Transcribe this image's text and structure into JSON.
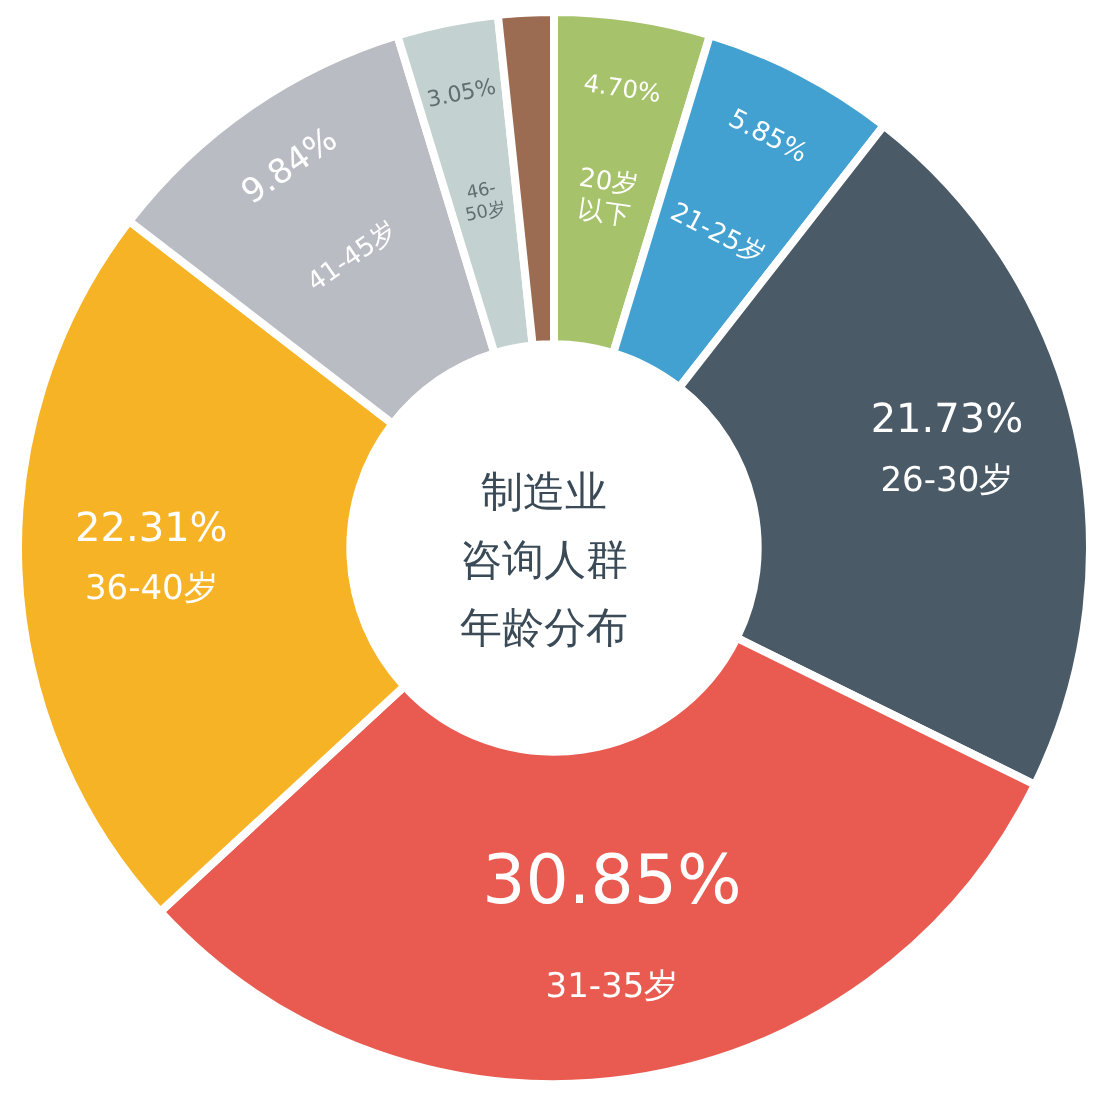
{
  "chart_data": {
    "type": "donut",
    "title": "制造业咨询人群年龄分布",
    "categories": [
      "20岁以下",
      "21-25岁",
      "26-30岁",
      "31-35岁",
      "36-40岁",
      "41-45岁",
      "46-50岁",
      null
    ],
    "values": [
      4.7,
      5.85,
      21.73,
      30.85,
      22.31,
      9.84,
      3.05,
      1.67
    ],
    "value_labels": [
      "4.70%",
      "5.85%",
      "21.73%",
      "30.85%",
      "22.31%",
      "9.84%",
      "3.05%",
      null
    ],
    "colors": [
      "#a6c36b",
      "#42a1d1",
      "#4a5a66",
      "#e95b50",
      "#f6b325",
      "#b9bcc3",
      "#c4d1d1",
      "#9b6c51"
    ],
    "legend": false
  }
}
